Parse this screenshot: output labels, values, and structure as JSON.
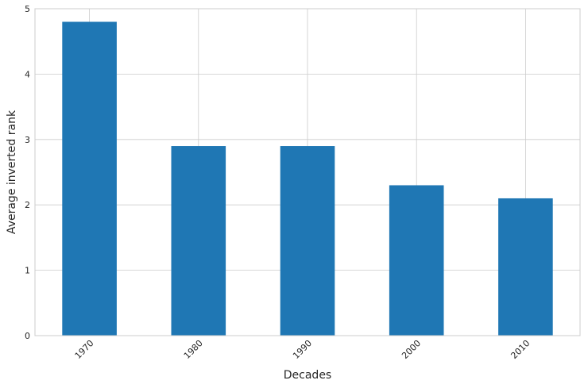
{
  "chart_data": {
    "type": "bar",
    "categories": [
      "1970",
      "1980",
      "1990",
      "2000",
      "2010"
    ],
    "values": [
      4.8,
      2.9,
      2.9,
      2.3,
      2.1
    ],
    "xlabel": "Decades",
    "ylabel": "Average inverted rank",
    "ylim": [
      0,
      5
    ],
    "yticks": [
      "0",
      "1",
      "2",
      "3",
      "4",
      "5"
    ],
    "grid": true,
    "bar_color": "#1f77b4",
    "grid_color": "#cccccc"
  }
}
